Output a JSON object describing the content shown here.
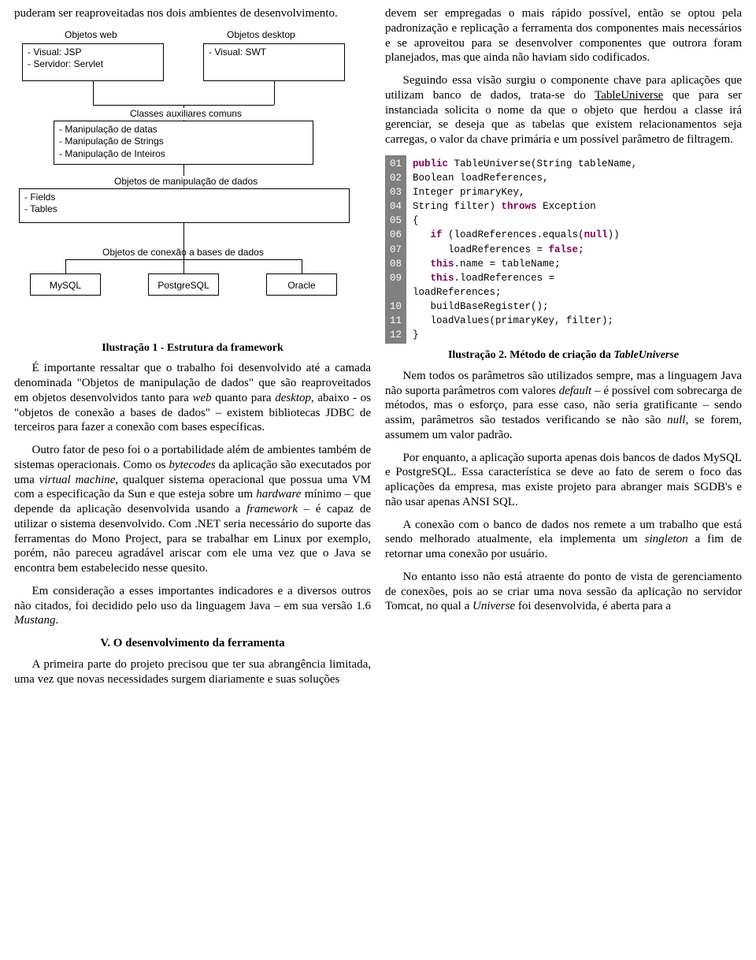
{
  "left": {
    "p_top": "puderam ser reaproveitadas nos dois ambientes de desenvolvimento.",
    "diagram": {
      "border_color": "#000000",
      "background_color": "#ffffff",
      "font_family": "Arial",
      "font_size_pt": 9,
      "labels": {
        "web": "Objetos web",
        "desktop": "Objetos desktop",
        "aux": "Classes auxiliares comuns",
        "manip": "Objetos de manipulação de dados",
        "conn": "Objetos de conexão a bases de dados"
      },
      "box_web_items": [
        "- Visual: JSP",
        "- Servidor: Servlet"
      ],
      "box_desktop_items": [
        "- Visual: SWT"
      ],
      "box_aux_items": [
        "- Manipulação de datas",
        "- Manipulação de Strings",
        "- Manipulação de Inteiros"
      ],
      "box_manip_items": [
        "- Fields",
        "- Tables"
      ],
      "dbs": [
        "MySQL",
        "PostgreSQL",
        "Oracle"
      ]
    },
    "caption1": "Ilustração 1 - Estrutura da framework",
    "p2a": "É importante ressaltar que o trabalho foi desenvolvido até a camada denominada \"Objetos de manipulação de dados\" que são reaproveitados em objetos desenvolvidos tanto para ",
    "p2_web": "web",
    "p2b": " quanto para ",
    "p2_desktop": "desktop",
    "p2c": ", abaixo - os \"objetos de conexão a bases de dados\" – existem bibliotecas JDBC de terceiros para fazer a conexão com bases específicas.",
    "p3a": "Outro fator de peso foi o a portabilidade além de ambientes também de sistemas operacionais. Como os ",
    "p3_bytecodes": "bytecodes",
    "p3b": " da aplicação são executados por uma ",
    "p3_vm": "virtual machine",
    "p3c": ", qualquer sistema operacional que possua uma VM com a especificação da Sun e que esteja sobre um ",
    "p3_hw": "hardware",
    "p3d": " mínimo – que depende da aplicação desenvolvida usando a ",
    "p3_fw": "framework",
    "p3e": " – é capaz de utilizar o sistema desenvolvido. Com .NET seria necessário do suporte das ferramentas do Mono Project, para se trabalhar em Linux por exemplo, porém, não pareceu agradável ariscar com ele uma vez que o Java se encontra bem estabelecido nesse quesito.",
    "p4a": "Em consideração a esses importantes indicadores e a diversos outros não citados, foi decidido pelo uso da linguagem Java – em sua versão 1.6 ",
    "p4_mustang": "Mustang",
    "p4b": ".",
    "heading": "V. O desenvolvimento da ferramenta",
    "p5": "A primeira parte do projeto precisou que ter sua abrangência limitada, uma vez que novas necessidades surgem diariamente e suas soluções"
  },
  "right": {
    "p1": "devem ser empregadas o mais rápido possível, então se optou pela padronização e replicação a ferramenta dos componentes mais necessários e se aproveitou para se desenvolver componentes que outrora foram planejados, mas que ainda não haviam sido codificados.",
    "p2a": "Seguindo essa visão surgiu o componente chave para aplicações que utilizam banco de dados, trata-se do ",
    "p2_tu": "TableUniverse",
    "p2b": " que para ser instanciada solicita o nome da que o objeto que herdou a classe irá gerenciar, se deseja que as tabelas que existem relacionamentos seja carregas, o valor da chave primária e um possível parâmetro de filtragem.",
    "code": {
      "gutter_bg": "#808080",
      "gutter_fg": "#ffffff",
      "keyword_color": "#7f0055",
      "text_color": "#000000",
      "font_family": "Courier New",
      "font_size_pt": 10,
      "line_numbers": [
        "01",
        "02",
        "03",
        "04",
        "05",
        "06",
        "07",
        "08",
        "09",
        "10",
        "11",
        "12"
      ],
      "lines": [
        [
          {
            "t": "public ",
            "k": true
          },
          {
            "t": "TableUniverse(String tableName,"
          }
        ],
        [
          {
            "t": "Boolean loadReferences,"
          }
        ],
        [
          {
            "t": "Integer primaryKey,"
          }
        ],
        [
          {
            "t": "String filter) "
          },
          {
            "t": "throws ",
            "k": true
          },
          {
            "t": "Exception"
          }
        ],
        [
          {
            "t": "{"
          }
        ],
        [
          {
            "t": "   "
          },
          {
            "t": "if ",
            "k": true
          },
          {
            "t": "(loadReferences.equals("
          },
          {
            "t": "null",
            "k": true
          },
          {
            "t": "))"
          }
        ],
        [
          {
            "t": "      loadReferences = "
          },
          {
            "t": "false",
            "k": true
          },
          {
            "t": ";"
          }
        ],
        [
          {
            "t": "   "
          },
          {
            "t": "this",
            "k": true
          },
          {
            "t": ".name = tableName;"
          }
        ],
        [
          {
            "t": "   "
          },
          {
            "t": "this",
            "k": true
          },
          {
            "t": ".loadReferences ="
          }
        ],
        [
          {
            "t": "loadReferences;"
          }
        ],
        [
          {
            "t": "   buildBaseRegister();"
          }
        ],
        [
          {
            "t": "   loadValues(primaryKey, filter);"
          }
        ],
        [
          {
            "t": "}"
          }
        ]
      ],
      "gutter_for_line10_blank": true
    },
    "caption2a": "Ilustração 2.  Método de criação da ",
    "caption2b": "TableUniverse",
    "p3a": "Nem todos os parâmetros são utilizados sempre, mas a linguagem Java não suporta parâmetros com valores ",
    "p3_default": "default",
    "p3b": " – é possível com sobrecarga de métodos, mas o esforço, para esse caso, não seria gratificante – sendo assim, parâmetros são testados verificando se não são ",
    "p3_null": "null",
    "p3c": ", se forem, assumem um valor padrão.",
    "p4": "Por enquanto, a aplicação suporta apenas dois bancos de dados MySQL e PostgreSQL. Essa característica se deve ao fato de serem o foco das aplicações da empresa, mas existe projeto para abranger mais SGDB's e não usar apenas ANSI SQL.",
    "p5a": "A conexão com o banco de dados nos remete a um trabalho que está sendo melhorado atualmente, ela implementa um ",
    "p5_singleton": "singleton",
    "p5b": " a fim de retornar uma conexão por usuário.",
    "p6a": "No entanto isso não está atraente do ponto de vista de gerenciamento de conexões, pois ao se criar uma nova sessão da aplicação no servidor Tomcat, no qual a ",
    "p6_universe": "Universe",
    "p6b": " foi desenvolvida, é aberta para a"
  }
}
